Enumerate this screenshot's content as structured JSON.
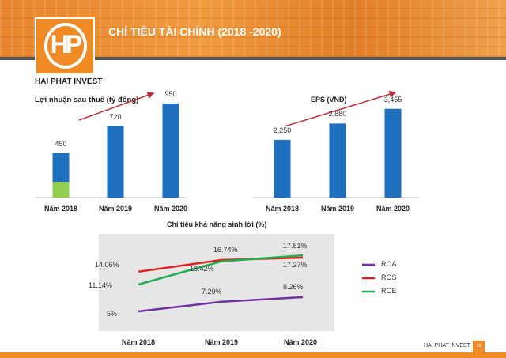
{
  "header": {
    "title": "CHỈ TIÊU TÀI CHÍNH (2018 -2020)",
    "logo_text": "HP",
    "brand": "HAI PHAT INVEST"
  },
  "footer": {
    "brand": "HAI PHAT INVEST",
    "page": "11"
  },
  "colors": {
    "accent": "#f08a24",
    "bar": "#1f6fbf",
    "bar_highlight": "#8fcf4f",
    "ROA": "#7030a0",
    "ROS": "#e02020",
    "ROE": "#20b050",
    "trend_arrow": "#c0303a"
  },
  "chart_data": [
    {
      "type": "bar",
      "title": "Lợi nhuận sau thuế (tỷ đồng)",
      "categories": [
        "Năm 2018",
        "Năm 2019",
        "Năm 2020"
      ],
      "values": [
        450,
        720,
        950
      ],
      "labels": [
        "450",
        "720",
        "950"
      ]
    },
    {
      "type": "bar",
      "title": "EPS (VNĐ)",
      "categories": [
        "Năm 2018",
        "Năm 2019",
        "Năm 2020"
      ],
      "values": [
        2250,
        2880,
        3455
      ],
      "labels": [
        "2,250",
        "2,880",
        "3,455"
      ]
    },
    {
      "type": "line",
      "title": "Chi tiêu khả năng sinh lời (%)",
      "categories": [
        "Năm 2018",
        "Năm 2019",
        "Năm 2020"
      ],
      "legend": "right",
      "series": [
        {
          "name": "ROA",
          "values": [
            5,
            7.2,
            8.26
          ],
          "labels": [
            "5%",
            "7.20%",
            "8.26%"
          ]
        },
        {
          "name": "ROS",
          "values": [
            14.06,
            16.74,
            17.27
          ],
          "labels": [
            "14.06%",
            "16.74%",
            "17.27%"
          ]
        },
        {
          "name": "ROE",
          "values": [
            11.14,
            16.42,
            17.81
          ],
          "labels": [
            "11.14%",
            "16.42%",
            "17.81%"
          ]
        }
      ]
    }
  ]
}
